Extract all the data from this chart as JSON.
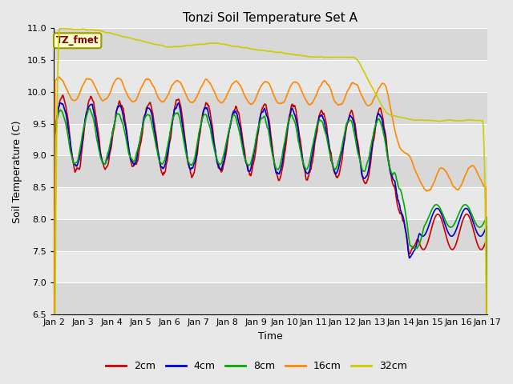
{
  "title": "Tonzi Soil Temperature Set A",
  "xlabel": "Time",
  "ylabel": "Soil Temperature (C)",
  "ylim": [
    6.5,
    11.0
  ],
  "yticks": [
    6.5,
    7.0,
    7.5,
    8.0,
    8.5,
    9.0,
    9.5,
    10.0,
    10.5,
    11.0
  ],
  "xtick_labels": [
    "Jan 2",
    "Jan 3",
    "Jan 4",
    "Jan 5",
    "Jan 6",
    "Jan 7",
    "Jan 8",
    "Jan 9",
    "Jan 10",
    "Jan 11",
    "Jan 12",
    "Jan 13",
    "Jan 14",
    "Jan 15",
    "Jan 16",
    "Jan 17"
  ],
  "colors": {
    "2cm": "#cc0000",
    "4cm": "#0000cc",
    "8cm": "#00aa00",
    "16cm": "#ff8800",
    "32cm": "#cccc00"
  },
  "background_color": "#e8e8e8",
  "plot_bg_color": "#e8e8e8",
  "band_color": "#d0d0d0",
  "annotation_text": "TZ_fmet",
  "annotation_bg": "#ffffcc",
  "annotation_border": "#999900"
}
